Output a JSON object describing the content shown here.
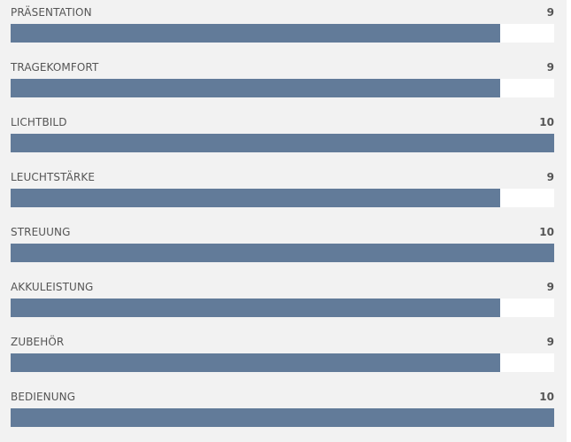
{
  "bar_color": "#627b99",
  "max_score": 10,
  "ratings": [
    {
      "label": "PRÄSENTATION",
      "score": "9"
    },
    {
      "label": "TRAGEKOMFORT",
      "score": "9"
    },
    {
      "label": "LICHTBILD",
      "score": "10"
    },
    {
      "label": "LEUCHTSTÄRKE",
      "score": "9"
    },
    {
      "label": "STREUUNG",
      "score": "10"
    },
    {
      "label": "AKKULEISTUNG",
      "score": "9"
    },
    {
      "label": "ZUBEHÖR",
      "score": "9"
    },
    {
      "label": "BEDIENUNG",
      "score": "10"
    }
  ]
}
